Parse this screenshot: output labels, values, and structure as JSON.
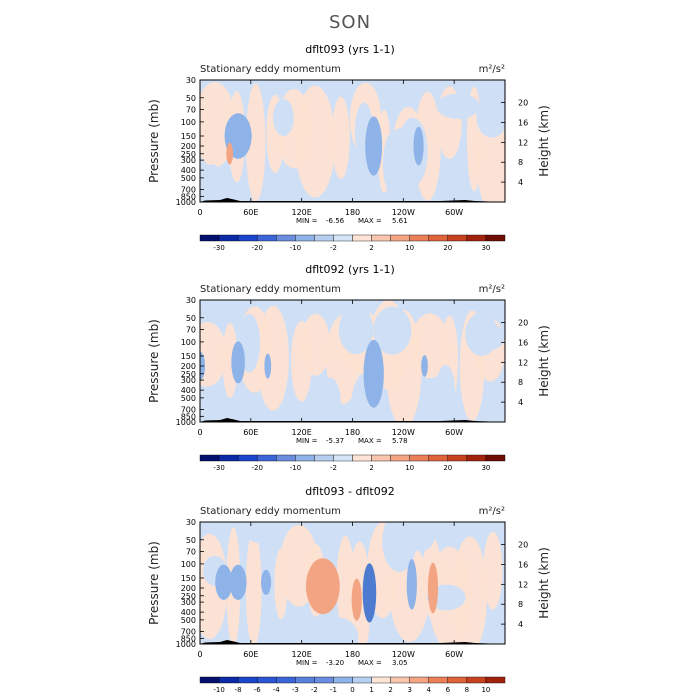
{
  "title": "SON",
  "colors": {
    "bg": "#ffffff",
    "positive_light": "#fde2d2",
    "positive_mid": "#f3a583",
    "positive_dark": "#e0643b",
    "negative_light": "#cfe0f6",
    "negative_mid": "#8eb3e8",
    "negative_dark": "#4c7bd0",
    "topo": "#000000"
  },
  "chart_data": [
    {
      "type": "heatmap",
      "title": "dflt093 (yrs 1-1)",
      "left_label": "Stationary eddy momentum",
      "units": "m²/s²",
      "ylabel": "Pressure (mb)",
      "ylabel_right": "Height (km)",
      "x_ticks": [
        "0",
        "60E",
        "120E",
        "180",
        "120W",
        "60W"
      ],
      "y_ticks": [
        "30",
        "50",
        "70",
        "100",
        "150",
        "200",
        "250",
        "300",
        "400",
        "500",
        "700",
        "850",
        "1000"
      ],
      "y_right_ticks": [
        "20",
        "16",
        "12",
        "8",
        "4"
      ],
      "min_label": "MIN =",
      "min": "-6.56",
      "max_label": "MAX =",
      "max": "5.61",
      "colorbar_levels": [
        "-30",
        "-20",
        "-10",
        "-2",
        "2",
        "10",
        "20",
        "30"
      ],
      "colorbar_colors": [
        "#04106e",
        "#0a2aa6",
        "#1b45cc",
        "#3c66d8",
        "#6a8ddf",
        "#8eb3e8",
        "#b6cff1",
        "#d6e4f8",
        "#fde4d6",
        "#f8c6ad",
        "#f3a583",
        "#ea7f59",
        "#e0643b",
        "#c8421f",
        "#a3220e",
        "#6e0e05"
      ],
      "blobs": [
        {
          "lon": 45,
          "p": 150,
          "v": -1,
          "rx": 8,
          "ry": 0.22
        },
        {
          "lon": 205,
          "p": 200,
          "v": -1,
          "rx": 5,
          "ry": 0.3
        },
        {
          "lon": 258,
          "p": 200,
          "v": -1,
          "rx": 3,
          "ry": 0.18
        },
        {
          "lon": 35,
          "p": 250,
          "v": 1,
          "rx": 2,
          "ry": 0.08
        }
      ]
    },
    {
      "type": "heatmap",
      "title": "dflt092 (yrs 1-1)",
      "left_label": "Stationary eddy momentum",
      "units": "m²/s²",
      "ylabel": "Pressure (mb)",
      "ylabel_right": "Height (km)",
      "x_ticks": [
        "0",
        "60E",
        "120E",
        "180",
        "120W",
        "60W"
      ],
      "y_ticks": [
        "30",
        "50",
        "70",
        "100",
        "150",
        "200",
        "250",
        "300",
        "400",
        "500",
        "700",
        "850",
        "1000"
      ],
      "y_right_ticks": [
        "20",
        "16",
        "12",
        "8",
        "4"
      ],
      "min_label": "MIN =",
      "min": "-5.37",
      "max_label": "MAX =",
      "max": "5.78",
      "colorbar_levels": [
        "-30",
        "-20",
        "-10",
        "-2",
        "2",
        "10",
        "20",
        "30"
      ],
      "colorbar_colors": [
        "#04106e",
        "#0a2aa6",
        "#1b45cc",
        "#3c66d8",
        "#6a8ddf",
        "#8eb3e8",
        "#b6cff1",
        "#d6e4f8",
        "#fde4d6",
        "#f8c6ad",
        "#f3a583",
        "#ea7f59",
        "#e0643b",
        "#c8421f",
        "#a3220e",
        "#6e0e05"
      ],
      "blobs": [
        {
          "lon": 45,
          "p": 180,
          "v": -1,
          "rx": 4,
          "ry": 0.2
        },
        {
          "lon": 80,
          "p": 200,
          "v": -1,
          "rx": 2,
          "ry": 0.1
        },
        {
          "lon": 205,
          "p": 250,
          "v": -1,
          "rx": 6,
          "ry": 0.35
        },
        {
          "lon": 0,
          "p": 200,
          "v": -1,
          "rx": 3,
          "ry": 0.12
        },
        {
          "lon": 265,
          "p": 200,
          "v": -1,
          "rx": 2,
          "ry": 0.08
        }
      ]
    },
    {
      "type": "heatmap",
      "title": "dflt093 - dflt092",
      "left_label": "Stationary eddy momentum",
      "units": "m²/s²",
      "ylabel": "Pressure (mb)",
      "ylabel_right": "Height (km)",
      "x_ticks": [
        "0",
        "60E",
        "120E",
        "180",
        "120W",
        "60W"
      ],
      "y_ticks": [
        "30",
        "50",
        "70",
        "100",
        "150",
        "200",
        "250",
        "300",
        "400",
        "500",
        "700",
        "850",
        "1000"
      ],
      "y_right_ticks": [
        "20",
        "16",
        "12",
        "8",
        "4"
      ],
      "min_label": "MIN =",
      "min": "-3.20",
      "max_label": "MAX =",
      "max": "3.05",
      "colorbar_levels": [
        "-10",
        "-8",
        "-6",
        "-4",
        "-3",
        "-2",
        "-1",
        "0",
        "1",
        "2",
        "3",
        "4",
        "6",
        "8",
        "10"
      ],
      "colorbar_colors": [
        "#04106e",
        "#0a2aa6",
        "#1b45cc",
        "#2b56d3",
        "#3c66d8",
        "#5a80dd",
        "#6a8ddf",
        "#8eb3e8",
        "#b6cff1",
        "#fde4d6",
        "#f8c6ad",
        "#f3a583",
        "#ea7f59",
        "#e0643b",
        "#c8421f",
        "#a3220e"
      ],
      "blobs": [
        {
          "lon": 28,
          "p": 170,
          "v": -1,
          "rx": 5,
          "ry": 0.16
        },
        {
          "lon": 45,
          "p": 170,
          "v": -1,
          "rx": 5,
          "ry": 0.16
        },
        {
          "lon": 78,
          "p": 170,
          "v": -1,
          "rx": 3,
          "ry": 0.1
        },
        {
          "lon": 145,
          "p": 190,
          "v": 1,
          "rx": 10,
          "ry": 0.28
        },
        {
          "lon": 185,
          "p": 280,
          "v": 1,
          "rx": 3,
          "ry": 0.2
        },
        {
          "lon": 200,
          "p": 230,
          "v": -2,
          "rx": 4,
          "ry": 0.3
        },
        {
          "lon": 250,
          "p": 180,
          "v": -1,
          "rx": 3,
          "ry": 0.25
        },
        {
          "lon": 275,
          "p": 200,
          "v": 1,
          "rx": 3,
          "ry": 0.25
        }
      ]
    }
  ]
}
